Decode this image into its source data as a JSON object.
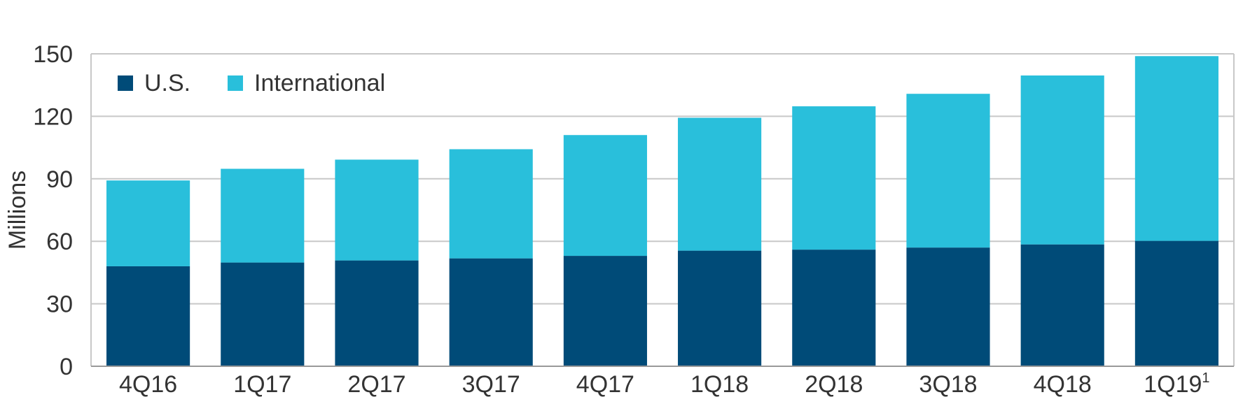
{
  "chart_data": {
    "type": "bar",
    "stacked": true,
    "categories": [
      "4Q16",
      "1Q17",
      "2Q17",
      "3Q17",
      "4Q17",
      "1Q18",
      "2Q18",
      "3Q18",
      "4Q18",
      "1Q19"
    ],
    "category_superscripts": [
      "",
      "",
      "",
      "",
      "",
      "",
      "",
      "",
      "",
      "1"
    ],
    "series": [
      {
        "name": "U.S.",
        "color": "#004b78",
        "values": [
          48.0,
          49.8,
          50.8,
          51.8,
          53.0,
          55.5,
          56.0,
          57.0,
          58.5,
          60.2
        ]
      },
      {
        "name": "International",
        "color": "#29bfdb",
        "values": [
          41.2,
          45.0,
          48.4,
          52.4,
          58.0,
          63.8,
          68.8,
          73.8,
          81.1,
          88.7
        ]
      }
    ],
    "ylabel": "Millions",
    "xlabel": "",
    "title": "",
    "ylim": [
      0,
      150
    ],
    "yticks": [
      0,
      30,
      60,
      90,
      120,
      150
    ],
    "grid": true,
    "legend_position": "top-left"
  }
}
